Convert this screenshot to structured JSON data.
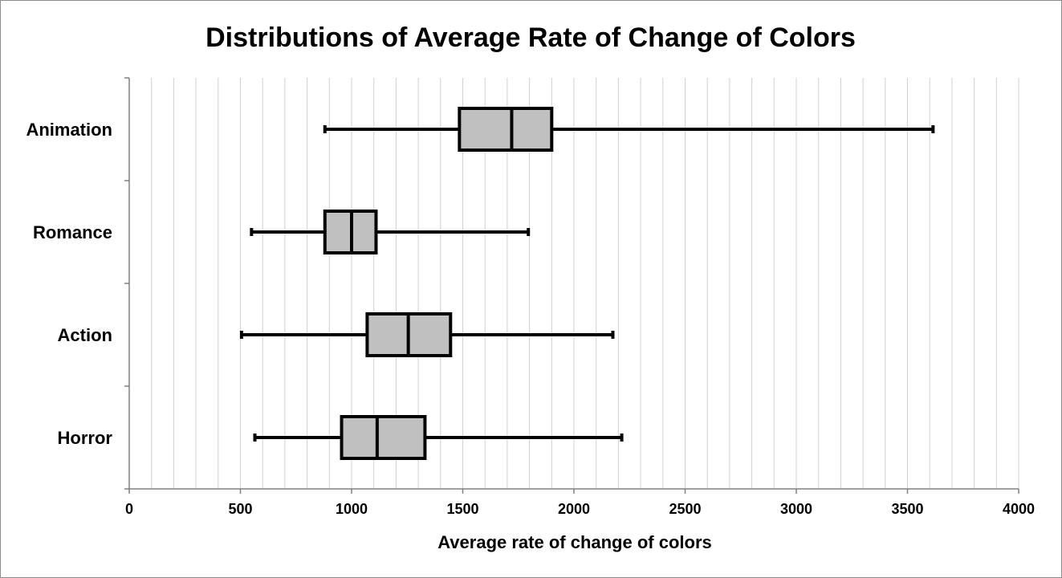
{
  "chart_data": {
    "type": "boxplot",
    "orientation": "horizontal",
    "title": "Distributions of Average Rate of Change of Colors",
    "xlabel": "Average rate of change of colors",
    "ylabel": "",
    "xlim": [
      0,
      4000
    ],
    "x_major_ticks": [
      0,
      500,
      1000,
      1500,
      2000,
      2500,
      3000,
      3500,
      4000
    ],
    "x_tick_labels": [
      "0",
      "500",
      "1000",
      "1500",
      "2000",
      "2500",
      "3000",
      "3500",
      "4000"
    ],
    "minor_grid_step": 100,
    "grid": true,
    "legend": "none",
    "box_fill": "#c0c0c0",
    "line_color": "#000000",
    "grid_color": "#d0d0d0",
    "categories": [
      "Animation",
      "Romance",
      "Action",
      "Horror"
    ],
    "series": [
      {
        "category": "Animation",
        "min": 880,
        "q1": 1485,
        "median": 1720,
        "q3": 1900,
        "max": 3615
      },
      {
        "category": "Romance",
        "min": 550,
        "q1": 880,
        "median": 1000,
        "q3": 1110,
        "max": 1795
      },
      {
        "category": "Action",
        "min": 505,
        "q1": 1070,
        "median": 1255,
        "q3": 1445,
        "max": 2175
      },
      {
        "category": "Horror",
        "min": 565,
        "q1": 955,
        "median": 1115,
        "q3": 1330,
        "max": 2215
      }
    ]
  }
}
